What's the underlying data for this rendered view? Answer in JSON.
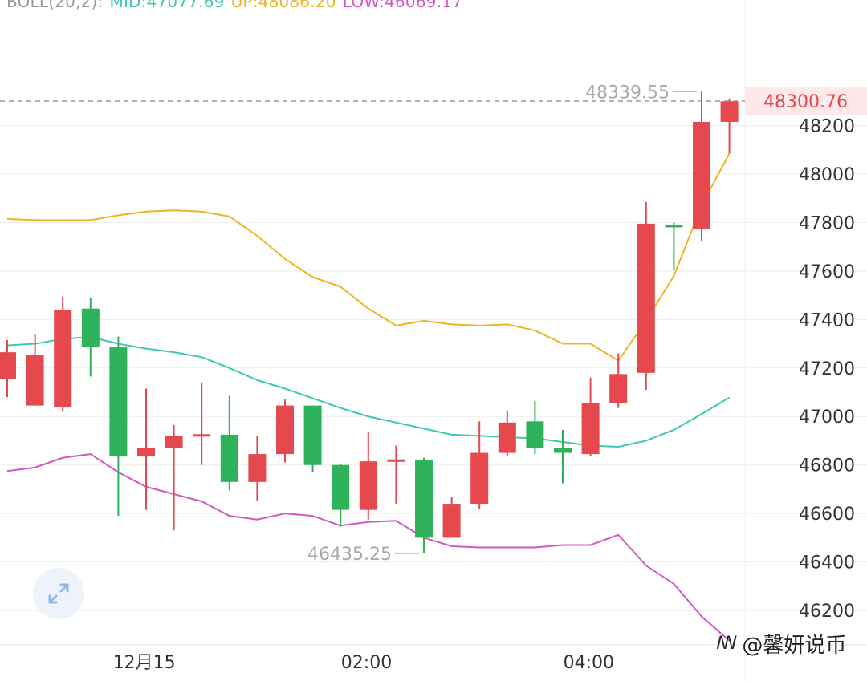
{
  "header": {
    "indicator": "BOLL(20,2):",
    "mid_label": "MID:47077.69",
    "up_label": "UP:48086.20",
    "low_label": "LOW:46069.17"
  },
  "colors": {
    "up_candle": "#e5484d",
    "down_candle": "#2fb35a",
    "mid_line": "#3cc8b4",
    "upper_line": "#f0b323",
    "lower_line": "#d457c4",
    "grid": "#eeeeee",
    "axis_text": "#333333",
    "annotation_text": "#aaaaaa",
    "price_tag_bg": "#fde9ea",
    "price_tag_text": "#e5484d"
  },
  "watermark": {
    "icon": "weibo-icon",
    "text": "@馨妍说币"
  },
  "expand_button": {
    "icon": "expand-arrows-icon"
  },
  "chart_data": {
    "type": "candlestick",
    "y_axis": {
      "ylim": [
        46058,
        48453
      ],
      "ticks": [
        46200,
        46400,
        46600,
        46800,
        47000,
        47200,
        47400,
        47600,
        47800,
        48000,
        48200
      ],
      "position": "right"
    },
    "x_axis": {
      "labels": [
        {
          "text": "12月15",
          "index": 4.5
        },
        {
          "text": "02:00",
          "index": 12.5
        },
        {
          "text": "04:00",
          "index": 20.5
        }
      ]
    },
    "current_price": {
      "value": 48300.76,
      "label": "48300.76"
    },
    "annotations": [
      {
        "text": "48339.55",
        "value": 48339.55,
        "index": 25,
        "side": "left"
      },
      {
        "text": "46435.25",
        "value": 46435.25,
        "index": 15,
        "side": "left"
      }
    ],
    "candles": [
      {
        "o": 47155,
        "h": 47315,
        "l": 47080,
        "c": 47265
      },
      {
        "o": 47045,
        "h": 47340,
        "l": 47045,
        "c": 47255
      },
      {
        "o": 47040,
        "h": 47495,
        "l": 47020,
        "c": 47440
      },
      {
        "o": 47445,
        "h": 47490,
        "l": 47165,
        "c": 47285
      },
      {
        "o": 47285,
        "h": 47330,
        "l": 46590,
        "c": 46835
      },
      {
        "o": 46835,
        "h": 47115,
        "l": 46615,
        "c": 46870
      },
      {
        "o": 46870,
        "h": 46965,
        "l": 46530,
        "c": 46920
      },
      {
        "o": 46922,
        "h": 47140,
        "l": 46800,
        "c": 46927
      },
      {
        "o": 46925,
        "h": 47085,
        "l": 46695,
        "c": 46730
      },
      {
        "o": 46730,
        "h": 46920,
        "l": 46650,
        "c": 46845
      },
      {
        "o": 46845,
        "h": 47070,
        "l": 46810,
        "c": 47045
      },
      {
        "o": 47045,
        "h": 47045,
        "l": 46770,
        "c": 46800
      },
      {
        "o": 46800,
        "h": 46805,
        "l": 46545,
        "c": 46615
      },
      {
        "o": 46615,
        "h": 46935,
        "l": 46575,
        "c": 46815
      },
      {
        "o": 46820,
        "h": 46880,
        "l": 46640,
        "c": 46823
      },
      {
        "o": 46820,
        "h": 46830,
        "l": 46435,
        "c": 46500
      },
      {
        "o": 46500,
        "h": 46670,
        "l": 46500,
        "c": 46640
      },
      {
        "o": 46640,
        "h": 46980,
        "l": 46620,
        "c": 46850
      },
      {
        "o": 46850,
        "h": 47025,
        "l": 46835,
        "c": 46975
      },
      {
        "o": 46980,
        "h": 47065,
        "l": 46845,
        "c": 46870
      },
      {
        "o": 46870,
        "h": 46945,
        "l": 46725,
        "c": 46850
      },
      {
        "o": 46845,
        "h": 47160,
        "l": 46835,
        "c": 47055
      },
      {
        "o": 47055,
        "h": 47260,
        "l": 47035,
        "c": 47175
      },
      {
        "o": 47180,
        "h": 47885,
        "l": 47110,
        "c": 47795
      },
      {
        "o": 47790,
        "h": 47800,
        "l": 47605,
        "c": 47780
      },
      {
        "o": 47775,
        "h": 48340,
        "l": 47725,
        "c": 48215
      },
      {
        "o": 48215,
        "h": 48310,
        "l": 48085,
        "c": 48300
      }
    ],
    "series": [
      {
        "name": "MID",
        "values": [
          47293,
          47300,
          47320,
          47328,
          47300,
          47280,
          47265,
          47245,
          47200,
          47150,
          47115,
          47075,
          47035,
          47000,
          46975,
          46950,
          46925,
          46920,
          46915,
          46910,
          46895,
          46880,
          46875,
          46900,
          46945,
          47010,
          47078
        ]
      },
      {
        "name": "UP",
        "values": [
          47815,
          47810,
          47810,
          47810,
          47830,
          47845,
          47850,
          47845,
          47825,
          47745,
          47650,
          47575,
          47535,
          47445,
          47375,
          47395,
          47380,
          47375,
          47380,
          47355,
          47300,
          47300,
          47230,
          47395,
          47580,
          47870,
          48085
        ]
      },
      {
        "name": "LOW",
        "values": [
          46775,
          46790,
          46830,
          46845,
          46770,
          46710,
          46680,
          46650,
          46590,
          46575,
          46600,
          46590,
          46550,
          46565,
          46570,
          46500,
          46465,
          46460,
          46460,
          46460,
          46470,
          46470,
          46512,
          46385,
          46310,
          46175,
          46075
        ]
      }
    ]
  }
}
